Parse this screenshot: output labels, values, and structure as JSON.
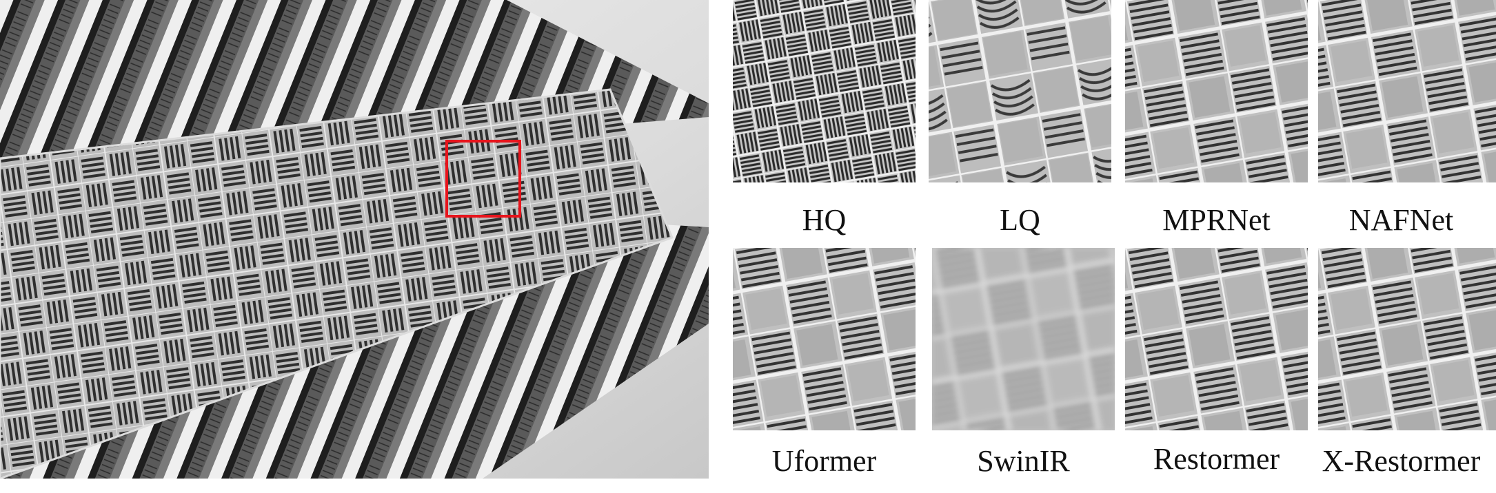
{
  "figure": {
    "panels": [
      {
        "label": "HQ"
      },
      {
        "label": "LQ"
      },
      {
        "label": "MPRNet"
      },
      {
        "label": "NAFNet"
      },
      {
        "label": "Uformer"
      },
      {
        "label": "SwinIR"
      },
      {
        "label": "Restormer"
      },
      {
        "label": "X-Restormer"
      }
    ],
    "colors": {
      "highlight_box": "#e8141c",
      "panel_face": "#b9b9b9",
      "slot": "#3a3a3a",
      "sky": "#e6e6e6"
    }
  }
}
